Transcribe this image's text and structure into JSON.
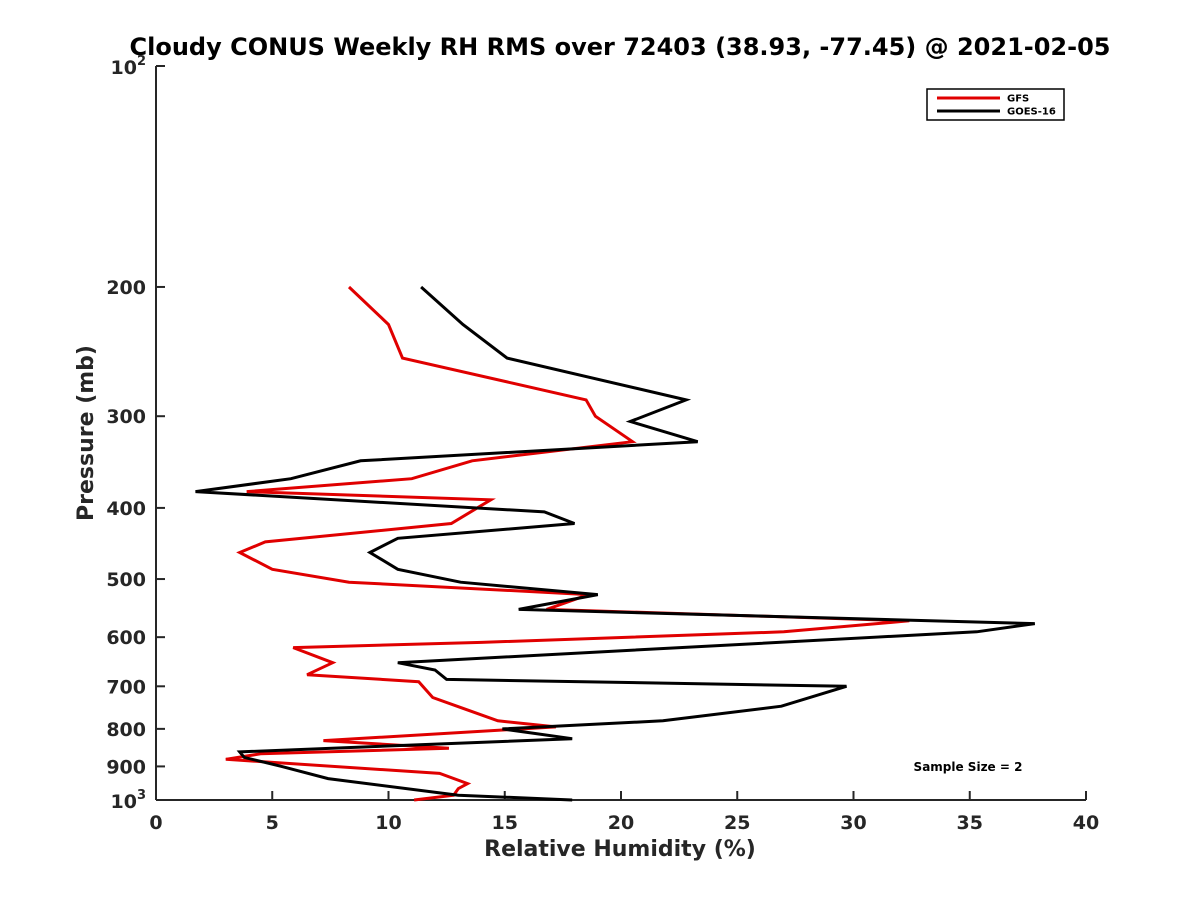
{
  "chart_data": {
    "type": "line",
    "title": "Cloudy CONUS Weekly RH RMS over 72403 (38.93, -77.45) @ 2021-02-05",
    "xlabel": "Relative Humidity (%)",
    "ylabel": "Pressure (mb)",
    "xlim": [
      0,
      40
    ],
    "ylim": [
      100,
      1000
    ],
    "y_scale": "log",
    "y_reversed": true,
    "x_ticks": [
      0,
      5,
      10,
      15,
      20,
      25,
      30,
      35,
      40
    ],
    "y_ticks": [
      {
        "value": 100,
        "base": "10",
        "exp": "2"
      },
      {
        "value": 200,
        "label": "200"
      },
      {
        "value": 300,
        "label": "300"
      },
      {
        "value": 400,
        "label": "400"
      },
      {
        "value": 500,
        "label": "500"
      },
      {
        "value": 600,
        "label": "600"
      },
      {
        "value": 700,
        "label": "700"
      },
      {
        "value": 800,
        "label": "800"
      },
      {
        "value": 900,
        "label": "900"
      },
      {
        "value": 1000,
        "base": "10",
        "exp": "3"
      }
    ],
    "grid": false,
    "legend_position": "top-right",
    "annotation": "Sample Size = 2",
    "series": [
      {
        "name": "GFS",
        "color": "#e00000",
        "points": [
          [
            8.3,
            200
          ],
          [
            10.0,
            225
          ],
          [
            10.6,
            250
          ],
          [
            18.5,
            285
          ],
          [
            18.9,
            300
          ],
          [
            20.5,
            325
          ],
          [
            13.6,
            345
          ],
          [
            11.0,
            365
          ],
          [
            3.9,
            380
          ],
          [
            14.4,
            390
          ],
          [
            12.7,
            420
          ],
          [
            4.7,
            445
          ],
          [
            3.6,
            460
          ],
          [
            5.0,
            485
          ],
          [
            8.3,
            505
          ],
          [
            18.6,
            525
          ],
          [
            16.8,
            550
          ],
          [
            32.4,
            570
          ],
          [
            27.0,
            590
          ],
          [
            14.0,
            610
          ],
          [
            5.9,
            620
          ],
          [
            7.6,
            650
          ],
          [
            6.5,
            675
          ],
          [
            11.3,
            690
          ],
          [
            11.9,
            725
          ],
          [
            13.2,
            750
          ],
          [
            14.7,
            780
          ],
          [
            17.2,
            795
          ],
          [
            7.2,
            830
          ],
          [
            12.6,
            850
          ],
          [
            4.5,
            865
          ],
          [
            3.0,
            880
          ],
          [
            12.2,
            920
          ],
          [
            13.4,
            950
          ],
          [
            13.0,
            965
          ],
          [
            12.8,
            985
          ],
          [
            11.1,
            1000
          ]
        ]
      },
      {
        "name": "GOES-16",
        "color": "#000000",
        "points": [
          [
            11.4,
            200
          ],
          [
            13.2,
            225
          ],
          [
            15.1,
            250
          ],
          [
            22.8,
            285
          ],
          [
            20.4,
            305
          ],
          [
            23.3,
            325
          ],
          [
            8.8,
            345
          ],
          [
            5.8,
            365
          ],
          [
            1.7,
            380
          ],
          [
            16.7,
            405
          ],
          [
            18.0,
            420
          ],
          [
            10.4,
            440
          ],
          [
            9.2,
            460
          ],
          [
            10.4,
            485
          ],
          [
            13.1,
            505
          ],
          [
            19.0,
            525
          ],
          [
            15.6,
            550
          ],
          [
            37.8,
            575
          ],
          [
            35.3,
            590
          ],
          [
            10.4,
            650
          ],
          [
            12.0,
            665
          ],
          [
            12.5,
            685
          ],
          [
            29.7,
            700
          ],
          [
            26.9,
            745
          ],
          [
            21.8,
            780
          ],
          [
            14.9,
            800
          ],
          [
            17.9,
            825
          ],
          [
            3.6,
            860
          ],
          [
            3.8,
            875
          ],
          [
            5.4,
            900
          ],
          [
            7.4,
            935
          ],
          [
            13.0,
            985
          ],
          [
            17.9,
            1000
          ]
        ]
      }
    ]
  }
}
